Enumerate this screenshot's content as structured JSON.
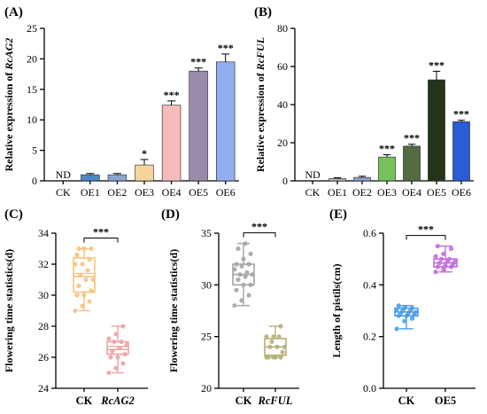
{
  "chart_data": [
    {
      "panel": "(A)",
      "type": "bar",
      "ylabel_prefix": "Relative expression of ",
      "ylabel_gene": "RcAG2",
      "categories": [
        "CK",
        "OE1",
        "OE2",
        "OE3",
        "OE4",
        "OE5",
        "OE6"
      ],
      "values": [
        0,
        1.0,
        1.0,
        2.6,
        12.4,
        18.0,
        19.5
      ],
      "errors": [
        0,
        0.2,
        0.2,
        0.9,
        0.7,
        0.5,
        1.3
      ],
      "colors": [
        "#ffffff",
        "#4f86c6",
        "#8aa6cf",
        "#f8d49b",
        "#f6bcbc",
        "#9b8bab",
        "#91aef0"
      ],
      "value_labels": [
        "ND",
        "",
        "",
        "*",
        "***",
        "***",
        "***"
      ],
      "ylim": [
        0,
        25
      ],
      "yticks": [
        0,
        5,
        10,
        15,
        20,
        25
      ]
    },
    {
      "panel": "(B)",
      "type": "bar",
      "ylabel_prefix": "Relative expression of ",
      "ylabel_gene": "RcFUL",
      "categories": [
        "CK",
        "OE1",
        "OE2",
        "OE3",
        "OE4",
        "OE5",
        "OE6"
      ],
      "values": [
        0,
        1.2,
        1.8,
        12.5,
        18.2,
        53.0,
        31.0
      ],
      "errors": [
        0,
        0.4,
        0.6,
        1.2,
        1.0,
        4.5,
        0.8
      ],
      "colors": [
        "#ffffff",
        "#b8b8b8",
        "#8aa6cf",
        "#77c15a",
        "#546b44",
        "#23351b",
        "#2a5cd6"
      ],
      "value_labels": [
        "ND",
        "",
        "",
        "***",
        "***",
        "***",
        "***"
      ],
      "ylim": [
        0,
        80
      ],
      "yticks": [
        0,
        20,
        40,
        60,
        80
      ]
    },
    {
      "panel": "(C)",
      "type": "box",
      "ylabel": "Flowering time statistics(d)",
      "categories": [
        "CK",
        "RcAG2"
      ],
      "categories_italic": [
        false,
        true
      ],
      "colors": [
        "#f6c37d",
        "#f0a3a3"
      ],
      "boxes": [
        {
          "min": 29,
          "q1": 30.2,
          "median": 31.2,
          "mean": 31.4,
          "q3": 32.4,
          "max": 33,
          "points": [
            29,
            29.3,
            29.6,
            30,
            30,
            30.3,
            30.6,
            31,
            31,
            31.3,
            31.6,
            32,
            32,
            32.3,
            32.6,
            33,
            33,
            33
          ]
        },
        {
          "min": 25,
          "q1": 26.2,
          "median": 26.5,
          "mean": 26.7,
          "q3": 27.0,
          "max": 28,
          "points": [
            25,
            25.3,
            25.6,
            26,
            26,
            26.2,
            26.4,
            26.6,
            26.8,
            27,
            27,
            27.2,
            27.5,
            28
          ]
        }
      ],
      "significance": "***",
      "ylim": [
        24,
        34
      ],
      "yticks": [
        24,
        26,
        28,
        30,
        32,
        34
      ]
    },
    {
      "panel": "(D)",
      "type": "box",
      "ylabel": "Flowering time statistics(d)",
      "categories": [
        "CK",
        "RcFUL"
      ],
      "categories_italic": [
        false,
        true
      ],
      "colors": [
        "#a5a5a5",
        "#b7b078"
      ],
      "boxes": [
        {
          "min": 28,
          "q1": 30.0,
          "median": 31.0,
          "mean": 31.0,
          "q3": 32.0,
          "max": 34,
          "points": [
            28,
            28.5,
            29,
            29.5,
            30,
            30,
            30.5,
            30.8,
            31,
            31,
            31.2,
            31.5,
            31.8,
            32,
            32,
            32.5,
            33,
            33.5,
            34
          ]
        },
        {
          "min": 23,
          "q1": 23.2,
          "median": 24.0,
          "mean": 24.0,
          "q3": 24.8,
          "max": 26,
          "points": [
            23,
            23,
            23,
            23,
            23,
            23.5,
            24,
            24,
            24,
            24.5,
            25,
            25,
            25,
            26
          ]
        }
      ],
      "significance": "***",
      "ylim": [
        20,
        35
      ],
      "yticks": [
        20,
        25,
        30,
        35
      ]
    },
    {
      "panel": "(E)",
      "type": "box",
      "ylabel": "Length of pistils(cm)",
      "categories": [
        "CK",
        "OE5"
      ],
      "categories_italic": [
        false,
        false
      ],
      "colors": [
        "#4c9ee8",
        "#c56be0"
      ],
      "boxes": [
        {
          "min": 0.23,
          "q1": 0.28,
          "median": 0.295,
          "mean": 0.295,
          "q3": 0.31,
          "max": 0.32,
          "points": [
            0.23,
            0.26,
            0.27,
            0.28,
            0.28,
            0.285,
            0.29,
            0.29,
            0.295,
            0.3,
            0.3,
            0.305,
            0.31,
            0.31,
            0.32
          ]
        },
        {
          "min": 0.45,
          "q1": 0.47,
          "median": 0.485,
          "mean": 0.485,
          "q3": 0.5,
          "max": 0.55,
          "points": [
            0.45,
            0.46,
            0.47,
            0.47,
            0.475,
            0.48,
            0.485,
            0.49,
            0.49,
            0.5,
            0.5,
            0.51,
            0.52,
            0.54,
            0.55
          ]
        }
      ],
      "significance": "***",
      "ylim": [
        0,
        0.6
      ],
      "yticks": [
        "0.0",
        "0.2",
        "0.4",
        "0.6"
      ]
    }
  ]
}
